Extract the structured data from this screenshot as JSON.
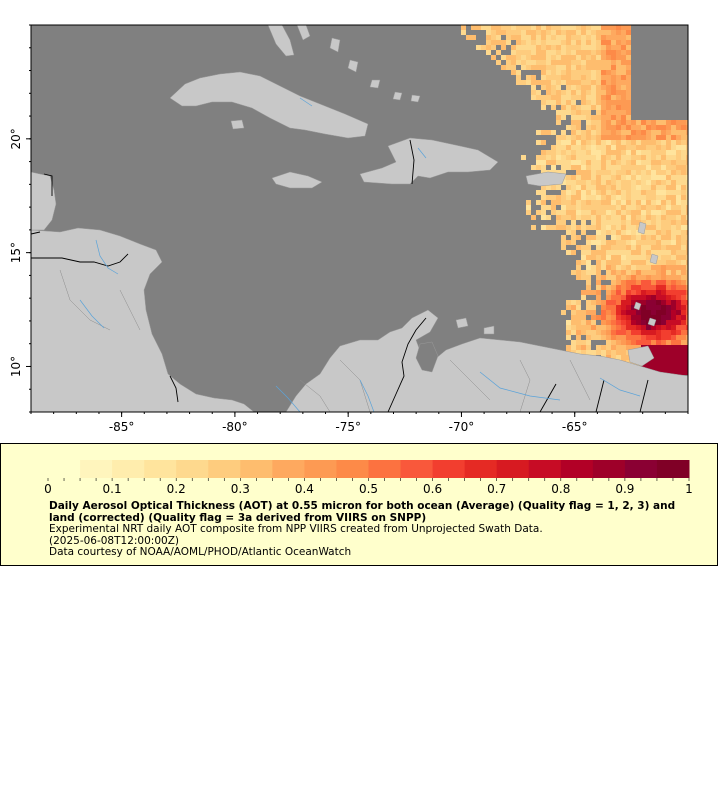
{
  "map": {
    "lon_range": [
      -89,
      -60
    ],
    "lat_range": [
      8,
      25
    ],
    "lon_ticks": [
      {
        "value": -85,
        "label": "-85°"
      },
      {
        "value": -80,
        "label": "-80°"
      },
      {
        "value": -75,
        "label": "-75°"
      },
      {
        "value": -70,
        "label": "-70°"
      },
      {
        "value": -65,
        "label": "-65°"
      }
    ],
    "lat_ticks": [
      {
        "value": 20,
        "label": "20°"
      },
      {
        "value": 15,
        "label": "15°"
      },
      {
        "value": 10,
        "label": "10°"
      }
    ],
    "colors": {
      "ocean": "#808080",
      "land": "#c8c8c8",
      "rivers": "#5ba3d9",
      "borders": "#000000",
      "frame": "#000000"
    }
  },
  "legend": {
    "min": 0,
    "max": 1,
    "tick_labels": [
      "0",
      "0.1",
      "0.2",
      "0.3",
      "0.4",
      "0.5",
      "0.6",
      "0.7",
      "0.8",
      "0.9",
      "1"
    ],
    "colorbar_colors": [
      "#ffffcc",
      "#fff5bd",
      "#ffedad",
      "#ffe49d",
      "#fed98e",
      "#fecc7e",
      "#febd6e",
      "#fea95f",
      "#fd9a53",
      "#fd8a48",
      "#fc7240",
      "#f9583b",
      "#f23e2f",
      "#e52a24",
      "#d71a21",
      "#c70c25",
      "#b20026",
      "#9e0029",
      "#8a0033",
      "#800026"
    ],
    "title": "Daily Aerosol Optical Thickness (AOT) at 0.55 micron for both ocean (Average) (Quality flag = 1, 2, 3) and land (corrected) (Quality flag = 3a derived from VIIRS on SNPP)",
    "line1": "Experimental NRT daily AOT composite from NPP VIIRS created from Unprojected Swath Data.",
    "line2": "(2025-06-08T12:00:00Z)",
    "line3": "Data courtesy of NOAA/AOML/PHOD/Atlantic OceanWatch"
  }
}
